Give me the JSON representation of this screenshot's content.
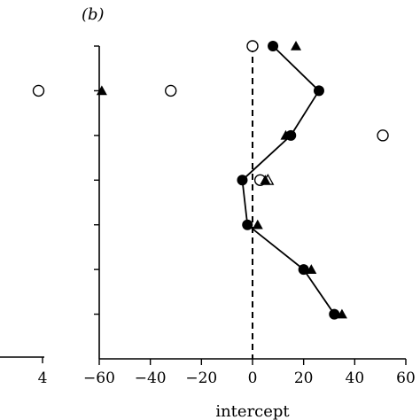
{
  "chart_data": [
    {
      "panel": "a",
      "type": "scatter",
      "title": "",
      "xlabel": "",
      "ylabel": "",
      "x_tick_labels": [
        "4"
      ],
      "series": [
        {
          "marker": "open-circle",
          "x": [
            3.9
          ],
          "y": [
            6
          ]
        }
      ]
    },
    {
      "panel": "b",
      "panel_label": "(b)",
      "type": "line",
      "title": "",
      "xlabel": "intercept",
      "ylabel": "",
      "xlim": [
        -60,
        60
      ],
      "ylim": [
        0,
        7
      ],
      "x_ticks": [
        -60,
        -40,
        -20,
        0,
        20,
        40,
        60
      ],
      "x_tick_labels": [
        "−60",
        "−40",
        "−20",
        "0",
        "20",
        "40",
        "60"
      ],
      "reference_line": {
        "x": 0,
        "style": "dashed"
      },
      "series": [
        {
          "marker": "filled-circle",
          "connected": true,
          "x": [
            8,
            26,
            15,
            -4,
            -2,
            20,
            32
          ],
          "y": [
            7,
            6,
            5,
            4,
            3,
            2,
            1
          ]
        },
        {
          "marker": "filled-triangle",
          "connected": false,
          "x": [
            17,
            -59,
            13,
            5,
            2,
            23,
            35
          ],
          "y": [
            7,
            6,
            5,
            4,
            3,
            2,
            1
          ]
        },
        {
          "marker": "open-circle",
          "connected": false,
          "x": [
            0,
            -32,
            51,
            3
          ],
          "y": [
            7,
            6,
            5,
            4
          ]
        },
        {
          "marker": "open-triangle",
          "connected": false,
          "x": [
            6
          ],
          "y": [
            4
          ]
        }
      ]
    }
  ]
}
